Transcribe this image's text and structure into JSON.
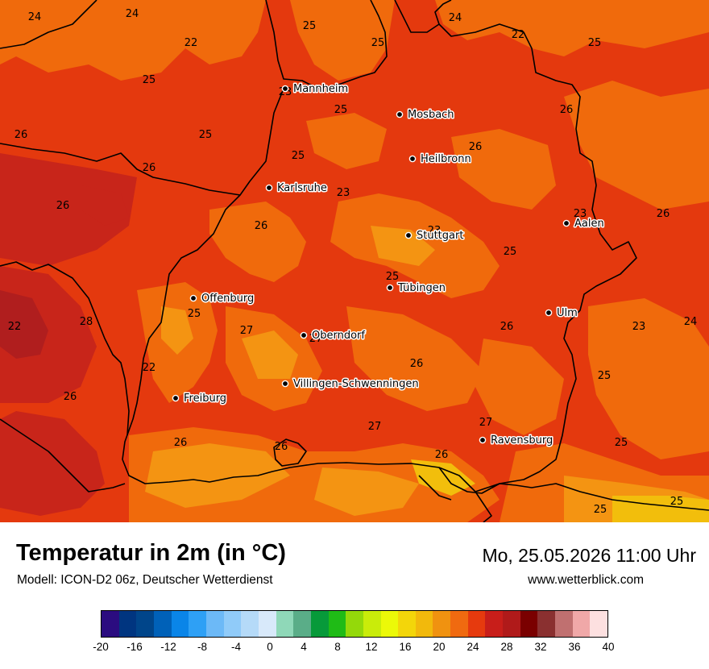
{
  "title": "Temperatur in 2m (in °C)",
  "model": "Modell: ICON-D2 06z, Deutscher Wetterdienst",
  "datetime": "Mo, 25.05.2026 11:00 Uhr",
  "website": "www.wetterblick.com",
  "colors": {
    "base": "#e4390e",
    "warm_dark": "#c8251a",
    "warm_darker": "#b01e1e",
    "mid": "#f06a0c",
    "cool": "#f49412",
    "coolest": "#f2be0c",
    "border": "#000000"
  },
  "cities": [
    {
      "name": "Mannheim"
    },
    {
      "name": "Mosbach"
    },
    {
      "name": "Heilbronn"
    },
    {
      "name": "Karlsruhe"
    },
    {
      "name": "Aalen"
    },
    {
      "name": "Stuttgart"
    },
    {
      "name": "Tübingen"
    },
    {
      "name": "Offenburg"
    },
    {
      "name": "Ulm"
    },
    {
      "name": "Oberndorf"
    },
    {
      "name": "Villingen-Schwenningen"
    },
    {
      "name": "Freiburg"
    },
    {
      "name": "Ravensburg"
    }
  ],
  "isolabels": [
    "24",
    "24",
    "25",
    "25",
    "24",
    "22",
    "22",
    "25",
    "25",
    "23",
    "25",
    "26",
    "26",
    "26",
    "25",
    "23",
    "23",
    "26",
    "26",
    "25",
    "23",
    "26",
    "26",
    "25",
    "25",
    "25",
    "22",
    "28",
    "27",
    "27",
    "26",
    "24",
    "23",
    "22",
    "26",
    "26",
    "25",
    "27",
    "27",
    "26",
    "26",
    "26",
    "25",
    "25",
    "25"
  ],
  "legend": {
    "colors": [
      "#2b0c80",
      "#003580",
      "#00458a",
      "#0061b8",
      "#0a85e8",
      "#2ea0f5",
      "#6cb9f7",
      "#90cbf9",
      "#b5daf8",
      "#d8e9fa",
      "#8fd8b8",
      "#5aad88",
      "#079a3a",
      "#1fbb16",
      "#94d90a",
      "#c9ec0a",
      "#ecf908",
      "#f3d60a",
      "#f2b90c",
      "#f09210",
      "#f06a10",
      "#e63a0e",
      "#c81e1a",
      "#b01a1a",
      "#7a0000",
      "#8a3030",
      "#c07070",
      "#f0a8a8",
      "#fde0e0"
    ],
    "ticks": [
      "-20",
      "-16",
      "-12",
      "-8",
      "-4",
      "0",
      "4",
      "8",
      "12",
      "16",
      "20",
      "24",
      "28",
      "32",
      "36",
      "40"
    ]
  }
}
